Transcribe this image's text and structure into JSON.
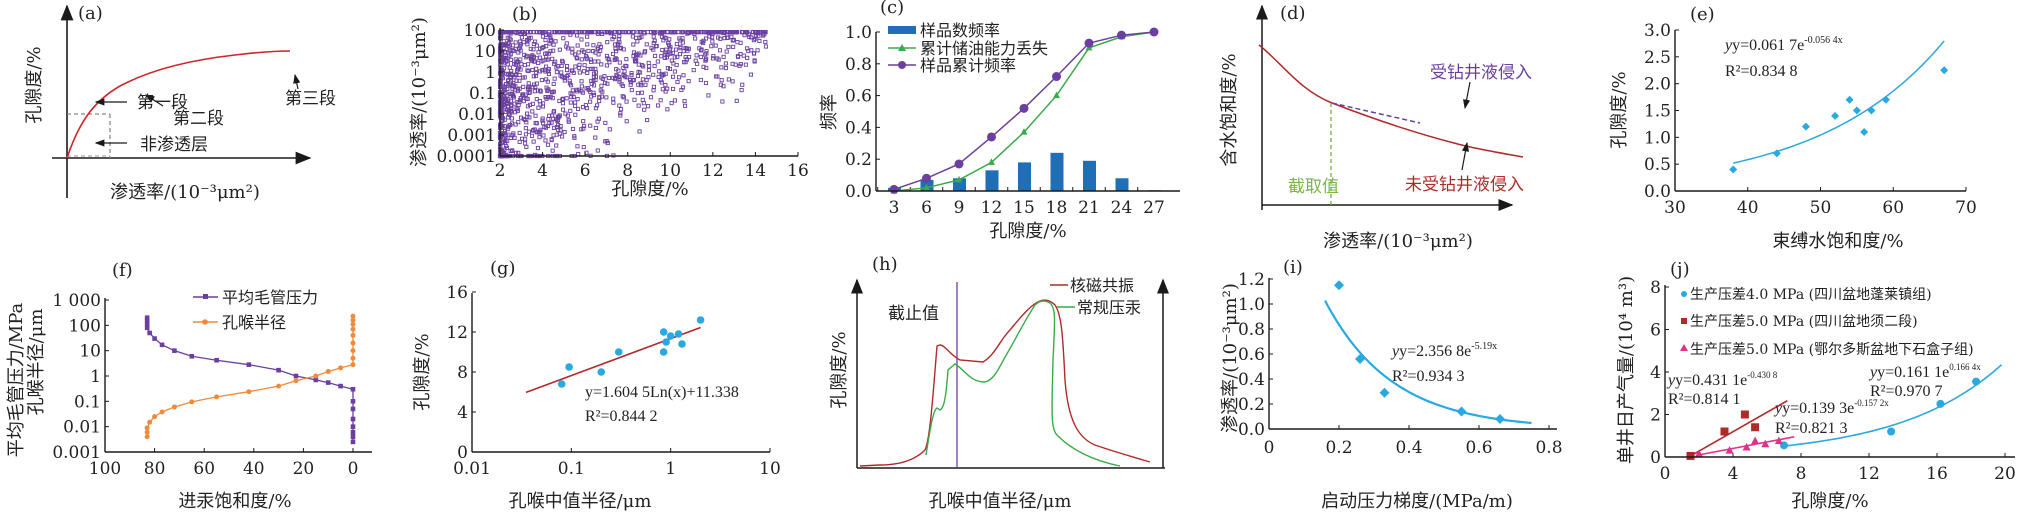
{
  "colors": {
    "axis": "#1a1a1a",
    "red": "#d0232a",
    "darkred": "#b02a2a",
    "purple": "#6a3fa0",
    "green": "#3aaa4a",
    "blue": "#1e6fb5",
    "cyan": "#2aa8e0",
    "orange": "#f08a3c",
    "magenta": "#e0308a",
    "lightgreen": "#7ab648",
    "grey": "#888888"
  },
  "chart_data": [
    {
      "id": "a",
      "panel_label": "(a)",
      "type": "line",
      "xlabel": "渗透率/(10⁻³μm²)",
      "ylabel": "孔隙度/%",
      "annotations": [
        "第一段",
        "第二段",
        "第三段",
        "非渗透层"
      ]
    },
    {
      "id": "b",
      "panel_label": "(b)",
      "type": "scatter",
      "xlabel": "孔隙度/%",
      "ylabel": "渗透率/(10⁻³μm²)",
      "xlim": [
        2,
        16
      ],
      "ylim_log": [
        0.0001,
        100
      ],
      "xticks": [
        "2",
        "4",
        "6",
        "8",
        "10",
        "12",
        "14",
        "16"
      ],
      "yticks": [
        "0.0001",
        "0.001",
        "0.01",
        "0.1",
        "1",
        "10",
        "100"
      ]
    },
    {
      "id": "c",
      "panel_label": "(c)",
      "type": "bar",
      "xlabel": "孔隙度/%",
      "ylabel": "频率",
      "ylim": [
        0,
        1.0
      ],
      "categories": [
        "3",
        "6",
        "9",
        "12",
        "15",
        "18",
        "21",
        "24",
        "27"
      ],
      "yticks": [
        "0.0",
        "0.2",
        "0.4",
        "0.6",
        "0.8",
        "1.0"
      ],
      "series": [
        {
          "name": "样品数频率",
          "kind": "bar",
          "values": [
            0.02,
            0.07,
            0.08,
            0.13,
            0.18,
            0.24,
            0.19,
            0.08,
            0.005
          ]
        },
        {
          "name": "累计储油能力丢失",
          "kind": "line",
          "values": [
            0.0,
            0.02,
            0.07,
            0.18,
            0.37,
            0.6,
            0.9,
            0.97,
            1.0
          ]
        },
        {
          "name": "样品累计频率",
          "kind": "line",
          "values": [
            0.01,
            0.08,
            0.17,
            0.34,
            0.52,
            0.72,
            0.93,
            0.98,
            1.0
          ]
        }
      ]
    },
    {
      "id": "d",
      "panel_label": "(d)",
      "type": "line",
      "xlabel": "渗透率/(10⁻³μm²)",
      "ylabel": "含水饱和度/%",
      "annotations": [
        "受钻井液侵入",
        "未受钻井液侵入",
        "截取值"
      ]
    },
    {
      "id": "e",
      "panel_label": "(e)",
      "type": "scatter",
      "xlabel": "束缚水饱和度/%",
      "ylabel": "孔隙度/%",
      "xlim": [
        30,
        70
      ],
      "ylim": [
        0,
        3.0
      ],
      "xticks": [
        "30",
        "40",
        "50",
        "60",
        "70"
      ],
      "yticks": [
        "0.0",
        "0.5",
        "1.0",
        "1.5",
        "2.0",
        "2.5",
        "3.0"
      ],
      "points": [
        [
          38,
          0.4
        ],
        [
          44,
          0.7
        ],
        [
          48,
          1.2
        ],
        [
          52,
          1.4
        ],
        [
          54,
          1.7
        ],
        [
          55,
          1.5
        ],
        [
          56,
          1.1
        ],
        [
          57,
          1.5
        ],
        [
          59,
          1.7
        ],
        [
          67,
          2.25
        ]
      ],
      "equation": "y=0.061 7e",
      "equation_exp": "-0.056 4x",
      "r2": "R²=0.834 8"
    },
    {
      "id": "f",
      "panel_label": "(f)",
      "type": "line",
      "xlabel": "进汞饱和度/%",
      "ylabel": "平均毛管压力/MPa 孔喉半径/μm",
      "xlim": [
        100,
        0
      ],
      "ylim_log": [
        0.001,
        1000
      ],
      "xticks": [
        "100",
        "80",
        "60",
        "40",
        "20",
        "0"
      ],
      "yticks": [
        "0.001",
        "0.01",
        "0.1",
        "1",
        "10",
        "100",
        "1 000"
      ],
      "series": [
        {
          "name": "平均毛管压力",
          "points": [
            [
              83,
              200
            ],
            [
              83,
              150
            ],
            [
              83,
              110
            ],
            [
              83,
              80
            ],
            [
              82,
              50
            ],
            [
              80,
              30
            ],
            [
              77,
              17
            ],
            [
              72,
              10
            ],
            [
              65,
              6
            ],
            [
              55,
              4.2
            ],
            [
              42,
              2.8
            ],
            [
              30,
              1.7
            ],
            [
              23,
              1.0
            ],
            [
              15,
              0.7
            ],
            [
              10,
              0.55
            ],
            [
              5,
              0.4
            ],
            [
              0,
              0.3
            ],
            [
              0,
              0.1
            ],
            [
              0,
              0.05
            ],
            [
              0,
              0.02
            ],
            [
              0,
              0.01
            ],
            [
              0,
              0.006
            ],
            [
              0,
              0.004
            ],
            [
              0,
              0.0025
            ]
          ]
        },
        {
          "name": "孔喉半径",
          "points": [
            [
              83,
              0.004
            ],
            [
              83,
              0.006
            ],
            [
              83,
              0.009
            ],
            [
              82,
              0.015
            ],
            [
              80,
              0.025
            ],
            [
              77,
              0.038
            ],
            [
              72,
              0.06
            ],
            [
              65,
              0.095
            ],
            [
              55,
              0.15
            ],
            [
              42,
              0.24
            ],
            [
              30,
              0.4
            ],
            [
              23,
              0.65
            ],
            [
              15,
              1.0
            ],
            [
              10,
              1.5
            ],
            [
              5,
              2.1
            ],
            [
              0,
              2.8
            ],
            [
              0,
              5
            ],
            [
              0,
              10
            ],
            [
              0,
              20
            ],
            [
              0,
              40
            ],
            [
              0,
              70
            ],
            [
              0,
              110
            ],
            [
              0,
              160
            ],
            [
              0,
              230
            ]
          ]
        }
      ]
    },
    {
      "id": "g",
      "panel_label": "(g)",
      "type": "scatter",
      "xlabel": "孔喉中值半径/μm",
      "ylabel": "孔隙度/%",
      "xlim_log": [
        0.01,
        10
      ],
      "ylim": [
        0,
        16
      ],
      "xticks": [
        "0.01",
        "0.1",
        "1",
        "10"
      ],
      "yticks": [
        "0",
        "4",
        "8",
        "12",
        "16"
      ],
      "points": [
        [
          0.08,
          6.8
        ],
        [
          0.095,
          8.5
        ],
        [
          0.2,
          8.0
        ],
        [
          0.3,
          10.0
        ],
        [
          0.85,
          10.0
        ],
        [
          0.9,
          11.0
        ],
        [
          1.0,
          11.6
        ],
        [
          0.85,
          12.0
        ],
        [
          1.2,
          11.8
        ],
        [
          1.3,
          10.8
        ],
        [
          2.0,
          13.2
        ]
      ],
      "fit_range": [
        0.035,
        2.0
      ],
      "equation": "y=1.604 5Ln(x)+11.338",
      "r2": "R²=0.844 2"
    },
    {
      "id": "h",
      "panel_label": "(h)",
      "type": "line",
      "xlabel": "孔喉中值半径/μm",
      "ylabel": "孔隙度/%",
      "series": [
        {
          "name": "核磁共振"
        },
        {
          "name": "常规压汞"
        }
      ],
      "annotations": [
        "截止值"
      ]
    },
    {
      "id": "i",
      "panel_label": "(i)",
      "type": "scatter",
      "xlabel": "启动压力梯度/(MPa/m)",
      "ylabel": "渗透率/(10⁻³μm²)",
      "xlim": [
        0,
        0.8
      ],
      "ylim": [
        0,
        1.2
      ],
      "xticks": [
        "0",
        "0.2",
        "0.4",
        "0.6",
        "0.8"
      ],
      "yticks": [
        "0.0",
        "0.2",
        "0.4",
        "0.6",
        "0.8",
        "1.0",
        "1.2"
      ],
      "points": [
        [
          0.2,
          1.15
        ],
        [
          0.26,
          0.56
        ],
        [
          0.33,
          0.29
        ],
        [
          0.55,
          0.14
        ],
        [
          0.66,
          0.08
        ]
      ],
      "equation": "y=2.356 8e",
      "equation_exp": "-5.19x",
      "r2": "R²=0.934 3"
    },
    {
      "id": "j",
      "panel_label": "(j)",
      "type": "scatter",
      "xlabel": "孔隙度/%",
      "ylabel": "单井日产气量/(10⁴ m³)",
      "xlim": [
        0,
        20
      ],
      "ylim": [
        0,
        8
      ],
      "xticks": [
        "0",
        "4",
        "8",
        "12",
        "16",
        "20"
      ],
      "yticks": [
        "0",
        "2",
        "4",
        "6",
        "8"
      ],
      "series": [
        {
          "name": "生产压差4.0 MPa (四川盆地蓬莱镇组)",
          "marker": "circle",
          "points": [
            [
              7,
              0.55
            ],
            [
              13.3,
              1.2
            ],
            [
              16.2,
              2.5
            ],
            [
              18.3,
              3.55
            ]
          ],
          "equation": "y=0.161 1e",
          "equation_exp": "0.166 4x",
          "r2": "R²=0.970 7"
        },
        {
          "name": "生产压差5.0 MPa (四川盆地须二段)",
          "marker": "square",
          "points": [
            [
              1.5,
              0.05
            ],
            [
              3.5,
              1.2
            ],
            [
              4.7,
              2.0
            ],
            [
              5.3,
              1.4
            ]
          ],
          "equation": "y=0.431 1e",
          "equation_exp": "-0.430 8",
          "r2": "R²=0.814 1"
        },
        {
          "name": "生产压差5.0 MPa (鄂尔多斯盆地下石盒子组)",
          "marker": "triangle",
          "points": [
            [
              2,
              0.15
            ],
            [
              3.8,
              0.3
            ],
            [
              4.8,
              0.45
            ],
            [
              5.3,
              0.75
            ],
            [
              5.9,
              0.6
            ],
            [
              6.7,
              0.75
            ]
          ],
          "equation": "y=0.139 3e",
          "equation_exp": "-0.157 2x",
          "r2": "R²=0.821 3"
        }
      ]
    }
  ]
}
